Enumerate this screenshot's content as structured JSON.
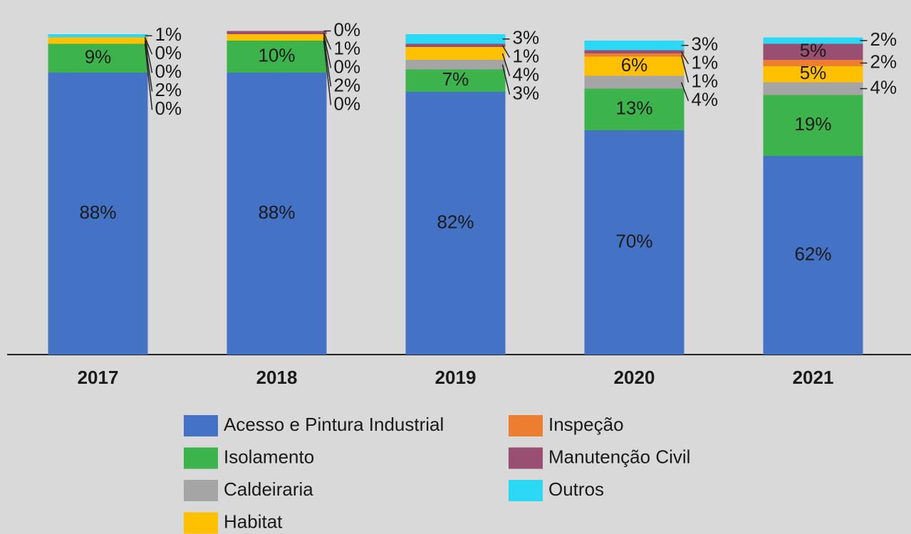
{
  "chart_data": {
    "type": "stacked_bar",
    "categories": [
      "2017",
      "2018",
      "2019",
      "2020",
      "2021"
    ],
    "ylim": [
      0,
      100
    ],
    "legend": "bottom",
    "series": [
      {
        "name": "Acesso e Pintura Industrial",
        "color": "#4472c4",
        "values": [
          88,
          88,
          82,
          70,
          62
        ],
        "value_labels": [
          "88%",
          "88%",
          "82%",
          "70%",
          "62%"
        ]
      },
      {
        "name": "Isolamento",
        "color": "#3cb44b",
        "values": [
          9,
          10,
          7,
          13,
          19
        ],
        "value_labels": [
          "9%",
          "10%",
          "7%",
          "13%",
          "19%"
        ]
      },
      {
        "name": "Caldeiraria",
        "color": "#a5a5a5",
        "values": [
          0,
          0,
          3,
          4,
          4
        ],
        "value_labels": [
          "0%",
          "0%",
          "3%",
          "4%",
          "4%"
        ]
      },
      {
        "name": "Habitat",
        "color": "#ffc000",
        "values": [
          2,
          2,
          4,
          6,
          5
        ],
        "value_labels": [
          "2%",
          "2%",
          "4%",
          "6%",
          "5%"
        ]
      },
      {
        "name": "Inspeção",
        "color": "#ed7d31",
        "values": [
          0,
          0,
          null,
          1,
          2
        ],
        "value_labels": [
          "0%",
          "0%",
          null,
          "1%",
          "2%"
        ]
      },
      {
        "name": "Manutenção Civil",
        "color": "#994f72",
        "values": [
          0,
          1,
          1,
          1,
          5
        ],
        "value_labels": [
          "0%",
          "1%",
          "1%",
          "1%",
          "5%"
        ]
      },
      {
        "name": "Outros",
        "color": "#2bd9f5",
        "values": [
          1,
          0,
          3,
          3,
          2
        ],
        "value_labels": [
          "1%",
          "0%",
          "3%",
          "3%",
          "2%"
        ]
      }
    ]
  }
}
